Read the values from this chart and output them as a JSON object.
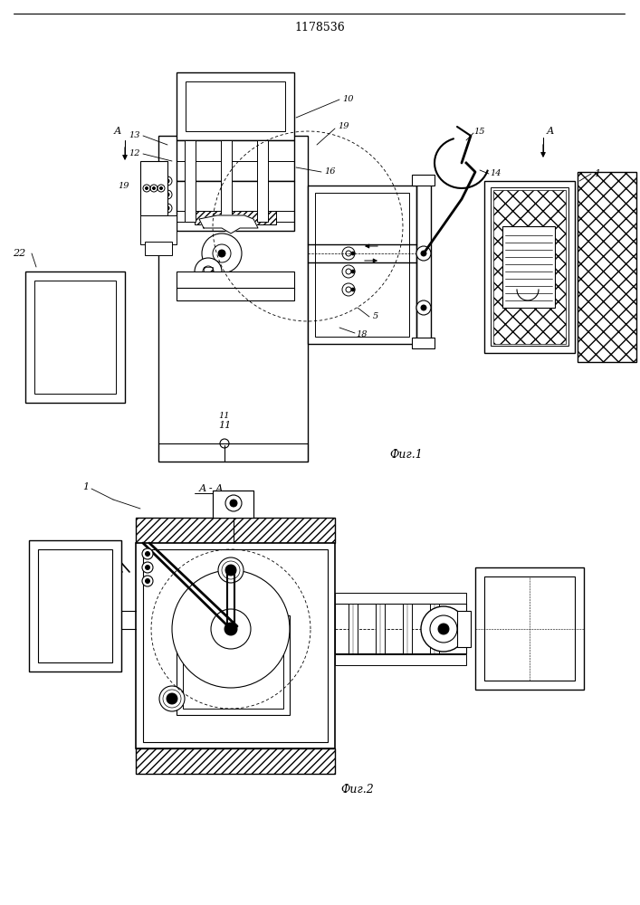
{
  "title": "1178536",
  "fig1_label": "Фиг.1",
  "fig2_label": "Фиг.2",
  "background_color": "#ffffff"
}
